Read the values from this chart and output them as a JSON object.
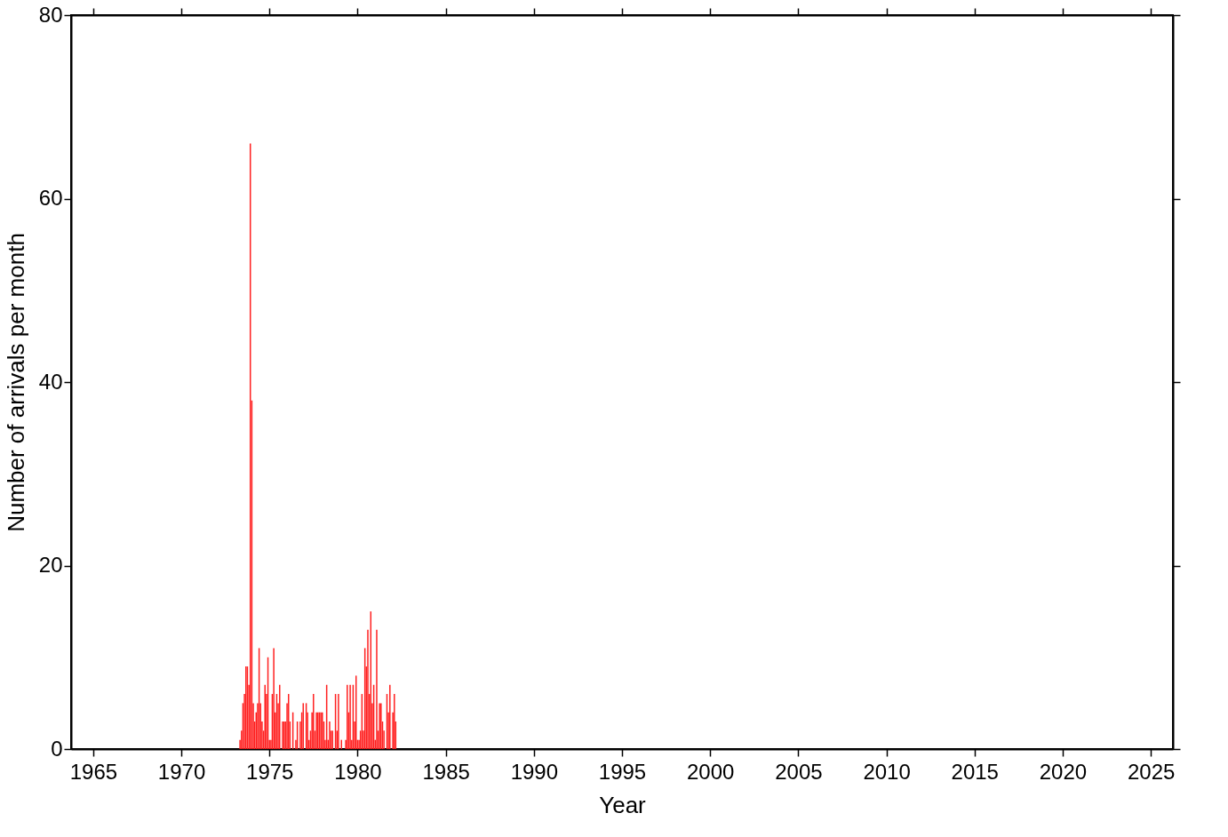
{
  "chart_data": {
    "type": "bar",
    "xlabel": "Year",
    "ylabel": "Number of arrivals per month",
    "x": [
      "1973-05",
      "1973-06",
      "1973-07",
      "1973-08",
      "1973-09",
      "1973-10",
      "1973-11",
      "1973-12",
      "1974-01",
      "1974-02",
      "1974-03",
      "1974-04",
      "1974-05",
      "1974-06",
      "1974-07",
      "1974-08",
      "1974-09",
      "1974-10",
      "1974-11",
      "1974-12",
      "1975-01",
      "1975-02",
      "1975-03",
      "1975-04",
      "1975-05",
      "1975-06",
      "1975-07",
      "1975-08",
      "1975-09",
      "1975-10",
      "1975-11",
      "1975-12",
      "1976-01",
      "1976-02",
      "1976-03",
      "1976-04",
      "1976-05",
      "1976-06",
      "1976-07",
      "1976-08",
      "1976-09",
      "1976-10",
      "1976-11",
      "1976-12",
      "1977-01",
      "1977-02",
      "1977-03",
      "1977-04",
      "1977-05",
      "1977-06",
      "1977-07",
      "1977-08",
      "1977-09",
      "1977-10",
      "1977-11",
      "1977-12",
      "1978-01",
      "1978-02",
      "1978-03",
      "1978-04",
      "1978-05",
      "1978-06",
      "1978-07",
      "1978-08",
      "1978-09",
      "1978-10",
      "1978-11",
      "1978-12",
      "1979-01",
      "1979-02",
      "1979-03",
      "1979-04",
      "1979-05",
      "1979-06",
      "1979-07",
      "1979-08",
      "1979-09",
      "1979-10",
      "1979-11",
      "1979-12",
      "1980-01",
      "1980-02",
      "1980-03",
      "1980-04",
      "1980-05",
      "1980-06",
      "1980-07",
      "1980-08",
      "1980-09",
      "1980-10",
      "1980-11",
      "1980-12",
      "1981-01",
      "1981-02",
      "1981-03",
      "1981-04",
      "1981-05",
      "1981-06",
      "1981-07",
      "1981-08",
      "1981-09",
      "1981-10",
      "1981-11",
      "1981-12",
      "1982-01",
      "1982-02",
      "1982-03"
    ],
    "values": [
      1,
      2,
      5,
      6,
      9,
      9,
      7,
      66,
      38,
      5,
      3,
      4,
      5,
      11,
      5,
      3,
      2,
      7,
      6,
      10,
      1,
      1,
      6,
      11,
      4,
      6,
      5,
      7,
      0,
      3,
      3,
      3,
      5,
      6,
      3,
      0,
      4,
      0,
      1,
      3,
      0,
      3,
      4,
      5,
      0,
      5,
      4,
      1,
      2,
      4,
      6,
      2,
      4,
      4,
      4,
      4,
      4,
      3,
      1,
      7,
      1,
      3,
      2,
      2,
      0,
      6,
      2,
      6,
      0,
      1,
      0,
      0,
      1,
      7,
      4,
      7,
      1,
      7,
      3,
      8,
      1,
      1,
      2,
      6,
      2,
      11,
      9,
      13,
      6,
      15,
      5,
      7,
      1,
      13,
      2,
      5,
      5,
      3,
      2,
      0,
      6,
      4,
      7,
      0,
      4,
      6,
      3
    ],
    "color": "#ff2020",
    "xlim": [
      "1964",
      "2026"
    ],
    "xticks": [
      "1965",
      "1970",
      "1975",
      "1980",
      "1985",
      "1990",
      "1995",
      "2000",
      "2005",
      "2010",
      "2015",
      "2020",
      "2025"
    ],
    "ylim": [
      0,
      80
    ],
    "yticks": [
      0,
      20,
      40,
      60,
      80
    ],
    "grid": false
  }
}
